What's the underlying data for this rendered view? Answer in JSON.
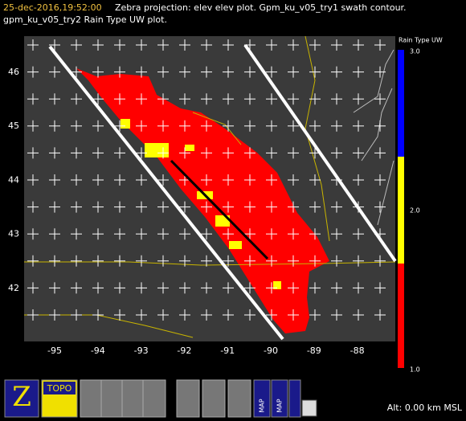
{
  "header": {
    "timestamp": "25-dec-2016,19:52:00",
    "line1": "Zebra projection: elev elev  plot.  Gpm_ku_v05_try1 swath contour.",
    "line2": "gpm_ku_v05_try2 Rain Type UW  plot."
  },
  "map": {
    "lat_labels": [
      "46",
      "45",
      "44",
      "43",
      "42"
    ],
    "lon_labels": [
      "-95",
      "-94",
      "-93",
      "-92",
      "-91",
      "-90",
      "-89",
      "-88"
    ]
  },
  "legend": {
    "title": "Rain Type UW",
    "labels": [
      "3.0",
      "2.0",
      "1.0"
    ]
  },
  "toolbar": {
    "icons": [
      "TOPO",
      "MAP",
      "MAP"
    ]
  },
  "status": "Alt: 0.00 km MSL"
}
